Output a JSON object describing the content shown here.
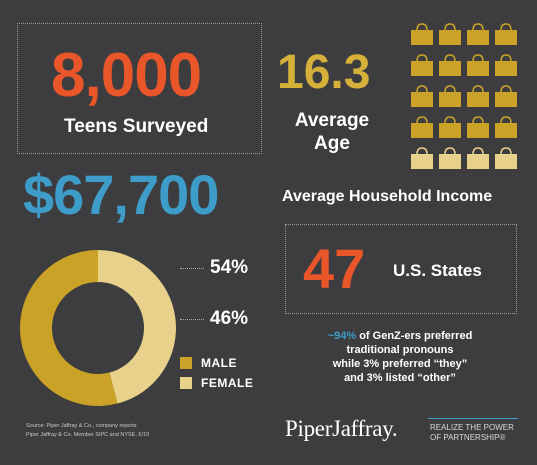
{
  "stats": {
    "teens_value": "8,000",
    "teens_label": "Teens Surveyed",
    "age_value": "16.3",
    "age_label_line1": "Average",
    "age_label_line2": "Age",
    "income_value": "$67,700",
    "income_label": "Average Household Income",
    "states_value": "47",
    "states_label": "U.S. States"
  },
  "gender_chart": {
    "male_pct_label": "54%",
    "female_pct_label": "46%",
    "legend_male": "MALE",
    "legend_female": "FEMALE"
  },
  "chart_data": {
    "type": "pie",
    "categories": [
      "MALE",
      "FEMALE"
    ],
    "values": [
      54,
      46
    ],
    "colors": [
      "#c9a227",
      "#e8d18a"
    ]
  },
  "pronouns": {
    "prefix": "~",
    "percent": "94%",
    "line1_rest": " of GenZ-ers preferred",
    "line2": "traditional pronouns",
    "line3": "while 3% preferred “they”",
    "line4": "and 3% listed “other”"
  },
  "footer": {
    "source_line1": "Source: Piper Jaffray & Co., company reports",
    "source_line2": "Piper Jaffray & Co. Member SIPC and NYSE. 6/19",
    "brand": "PiperJaffray.",
    "tagline_line1": "REALIZE THE POWER",
    "tagline_line2": "OF PARTNERSHIP®"
  },
  "colors": {
    "background": "#3d3d3f",
    "orange": "#e8562a",
    "gold": "#d6b13a",
    "blue": "#3d9cc8",
    "bag_dark": "#c9a227",
    "bag_light": "#e8d18a"
  },
  "icons": {
    "bag": "shopping-bag-icon",
    "bag_grid_rows": 5,
    "bag_grid_cols": 4
  }
}
